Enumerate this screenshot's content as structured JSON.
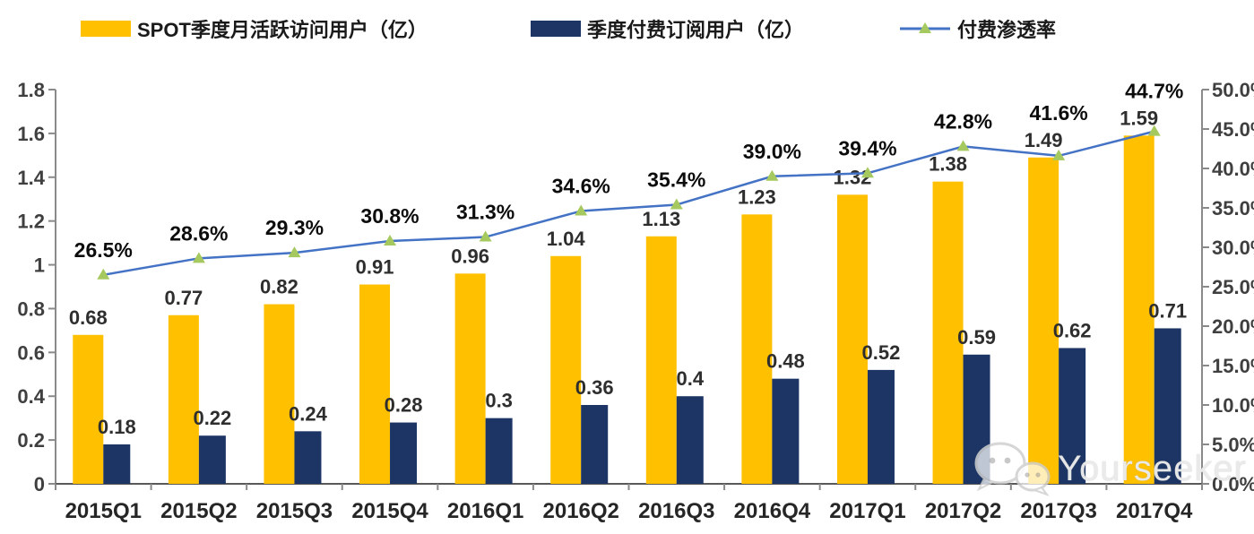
{
  "legend": {
    "items": [
      {
        "label": "SPOT季度月活跃访问用户（亿）",
        "swatch": "bar",
        "color": "#FFC000"
      },
      {
        "label": "季度付费订阅用户（亿）",
        "swatch": "bar",
        "color": "#1C3564"
      },
      {
        "label": "付费渗透率",
        "swatch": "line-triangle",
        "line_color": "#4472C4",
        "marker_color": "#A6C95F"
      }
    ]
  },
  "chart_data": {
    "type": "bar+line combo",
    "categories": [
      "2015Q1",
      "2015Q2",
      "2015Q3",
      "2015Q4",
      "2016Q1",
      "2016Q2",
      "2016Q3",
      "2016Q4",
      "2017Q1",
      "2017Q2",
      "2017Q3",
      "2017Q4"
    ],
    "series": [
      {
        "name": "SPOT季度月活跃访问用户（亿）",
        "type": "bar",
        "axis": "left",
        "color": "#FFC000",
        "values": [
          0.68,
          0.77,
          0.82,
          0.91,
          0.96,
          1.04,
          1.13,
          1.23,
          1.32,
          1.38,
          1.49,
          1.59
        ],
        "labels": [
          "0.68",
          "0.77",
          "0.82",
          "0.91",
          "0.96",
          "1.04",
          "1.13",
          "1.23",
          "1.32",
          "1.38",
          "1.49",
          "1.59"
        ]
      },
      {
        "name": "季度付费订阅用户（亿）",
        "type": "bar",
        "axis": "left",
        "color": "#1C3564",
        "values": [
          0.18,
          0.22,
          0.24,
          0.28,
          0.3,
          0.36,
          0.4,
          0.48,
          0.52,
          0.59,
          0.62,
          0.71
        ],
        "labels": [
          "0.18",
          "0.22",
          "0.24",
          "0.28",
          "0.3",
          "0.36",
          "0.4",
          "0.48",
          "0.52",
          "0.59",
          "0.62",
          "0.71"
        ]
      },
      {
        "name": "付费渗透率",
        "type": "line",
        "axis": "right",
        "color": "#4472C4",
        "marker": "triangle-up",
        "marker_color": "#A6C95F",
        "values": [
          26.5,
          28.6,
          29.3,
          30.8,
          31.3,
          34.6,
          35.4,
          39.0,
          39.4,
          42.8,
          41.6,
          44.7
        ],
        "labels": [
          "26.5%",
          "28.6%",
          "29.3%",
          "30.8%",
          "31.3%",
          "34.6%",
          "35.4%",
          "39.0%",
          "39.4%",
          "42.8%",
          "41.6%",
          "44.7%"
        ]
      }
    ],
    "left_axis": {
      "min": 0,
      "max": 1.8,
      "step": 0.2,
      "tick_labels": [
        "0",
        "0.2",
        "0.4",
        "0.6",
        "0.8",
        "1",
        "1.2",
        "1.4",
        "1.6",
        "1.8"
      ]
    },
    "right_axis": {
      "min": 0,
      "max": 50,
      "step": 5,
      "tick_labels": [
        "0.0%",
        "5.0%",
        "10.0%",
        "15.0%",
        "20.0%",
        "25.0%",
        "30.0%",
        "35.0%",
        "40.0%",
        "45.0%",
        "50.0%"
      ]
    },
    "grid": false,
    "legend_position": "top",
    "title": ""
  },
  "watermark": {
    "text": "Yourseeker",
    "icon": "wechat-icon"
  }
}
